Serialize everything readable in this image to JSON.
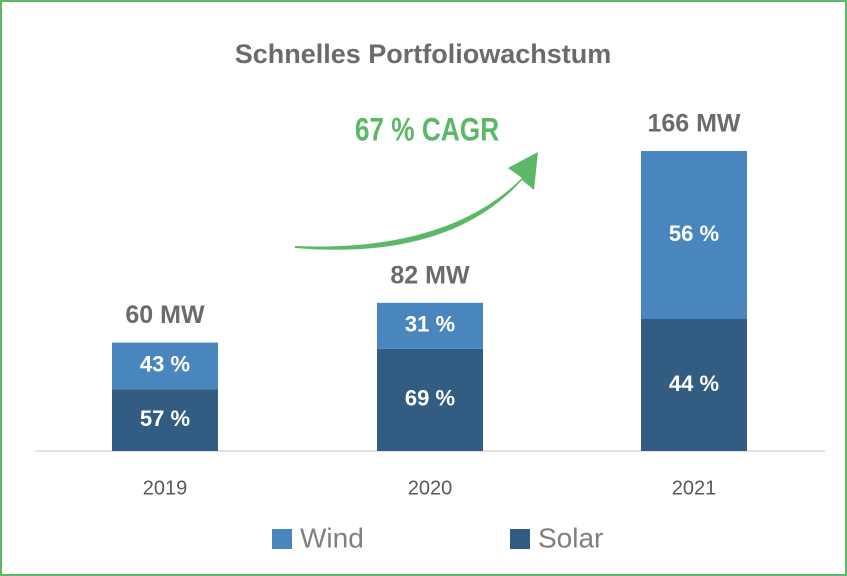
{
  "chart_data": {
    "type": "stacked_bar",
    "title": "Schnelles Portfoliowachstum",
    "annotation": "67 % CAGR",
    "categories": [
      "2019",
      "2020",
      "2021"
    ],
    "totals": {
      "values": [
        60,
        82,
        166
      ],
      "value_labels": [
        "60 MW",
        "82 MW",
        "166 MW"
      ]
    },
    "series": [
      {
        "name": "Wind",
        "color": "#4a86be",
        "values": [
          43,
          31,
          56
        ],
        "value_labels": [
          "43 %",
          "31 %",
          "56 %"
        ]
      },
      {
        "name": "Solar",
        "color": "#335c82",
        "values": [
          57,
          69,
          44
        ],
        "value_labels": [
          "57 %",
          "69 %",
          "44 %"
        ]
      }
    ]
  }
}
